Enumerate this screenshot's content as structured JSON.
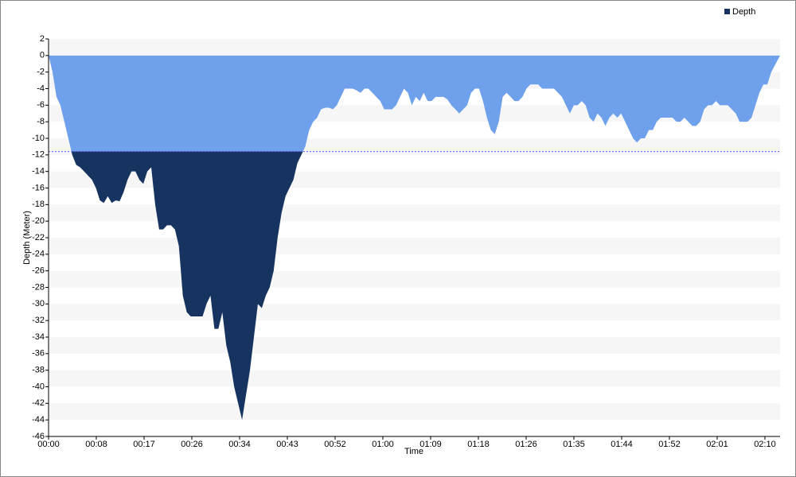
{
  "chart_data": {
    "type": "area",
    "x_label": "Time",
    "y_label": "Depth (Meter)",
    "legend": "top-right",
    "grid": false,
    "threshold": -11.6,
    "threshold_color": "#5a5af0",
    "xlim": [
      0,
      7965
    ],
    "ylim": [
      -46,
      2
    ],
    "xticks": [
      {
        "value": 0,
        "label": "00:00"
      },
      {
        "value": 520,
        "label": "00:08"
      },
      {
        "value": 1040,
        "label": "00:17"
      },
      {
        "value": 1560,
        "label": "00:26"
      },
      {
        "value": 2080,
        "label": "00:34"
      },
      {
        "value": 2600,
        "label": "00:43"
      },
      {
        "value": 3120,
        "label": "00:52"
      },
      {
        "value": 3640,
        "label": "01:00"
      },
      {
        "value": 4160,
        "label": "01:09"
      },
      {
        "value": 4680,
        "label": "01:18"
      },
      {
        "value": 5200,
        "label": "01:26"
      },
      {
        "value": 5720,
        "label": "01:35"
      },
      {
        "value": 6240,
        "label": "01:44"
      },
      {
        "value": 6760,
        "label": "01:52"
      },
      {
        "value": 7280,
        "label": "02:01"
      },
      {
        "value": 7800,
        "label": "02:10"
      }
    ],
    "yticks": [
      2,
      0,
      -2,
      -4,
      -6,
      -8,
      -10,
      -12,
      -14,
      -16,
      -18,
      -20,
      -22,
      -24,
      -26,
      -28,
      -30,
      -32,
      -34,
      -36,
      -38,
      -40,
      -42,
      -44,
      -46
    ],
    "x": [
      0,
      43,
      86,
      129,
      172,
      215,
      258,
      301,
      344,
      387,
      430,
      473,
      516,
      559,
      602,
      645,
      688,
      731,
      774,
      817,
      860,
      903,
      946,
      989,
      1032,
      1075,
      1118,
      1161,
      1204,
      1247,
      1290,
      1333,
      1376,
      1419,
      1462,
      1505,
      1548,
      1591,
      1634,
      1677,
      1720,
      1763,
      1806,
      1849,
      1892,
      1935,
      1978,
      2021,
      2064,
      2107,
      2150,
      2193,
      2236,
      2279,
      2322,
      2365,
      2408,
      2451,
      2494,
      2537,
      2580,
      2623,
      2666,
      2709,
      2752,
      2795,
      2838,
      2881,
      2924,
      2967,
      3010,
      3053,
      3096,
      3139,
      3182,
      3225,
      3268,
      3311,
      3354,
      3397,
      3440,
      3483,
      3526,
      3569,
      3612,
      3655,
      3698,
      3741,
      3784,
      3827,
      3870,
      3913,
      3956,
      3999,
      4042,
      4085,
      4128,
      4171,
      4214,
      4257,
      4300,
      4343,
      4386,
      4429,
      4472,
      4515,
      4558,
      4601,
      4644,
      4687,
      4730,
      4773,
      4816,
      4859,
      4902,
      4945,
      4988,
      5031,
      5074,
      5117,
      5160,
      5203,
      5246,
      5289,
      5332,
      5375,
      5418,
      5461,
      5504,
      5547,
      5590,
      5633,
      5676,
      5719,
      5762,
      5805,
      5848,
      5891,
      5934,
      5977,
      6020,
      6063,
      6106,
      6149,
      6192,
      6235,
      6278,
      6321,
      6364,
      6407,
      6450,
      6493,
      6536,
      6579,
      6622,
      6665,
      6708,
      6751,
      6794,
      6837,
      6880,
      6923,
      6966,
      7009,
      7052,
      7095,
      7138,
      7181,
      7224,
      7267,
      7310,
      7353,
      7396,
      7439,
      7482,
      7525,
      7568,
      7611,
      7654,
      7697,
      7740,
      7783,
      7826,
      7869,
      7965
    ],
    "series": [
      {
        "name": "Depth",
        "color": "#17335f",
        "above_color": "#6fa0ec",
        "values": [
          0,
          -2,
          -5,
          -6,
          -8,
          -10,
          -12,
          -13.2,
          -13.5,
          -14,
          -14.5,
          -15,
          -16,
          -17.5,
          -17.8,
          -17,
          -17.8,
          -17.5,
          -17.6,
          -16.5,
          -15,
          -14,
          -14,
          -15,
          -15.5,
          -14,
          -13.5,
          -18,
          -21,
          -21,
          -20.5,
          -20.5,
          -21,
          -23,
          -29,
          -31,
          -31.5,
          -31.5,
          -31.5,
          -31.5,
          -30,
          -29,
          -33,
          -33,
          -31,
          -35,
          -37,
          -40,
          -42,
          -44,
          -41,
          -38,
          -34,
          -30,
          -30.5,
          -29,
          -28,
          -26,
          -22,
          -19,
          -17,
          -16,
          -15,
          -13,
          -12,
          -11,
          -9,
          -8,
          -7.5,
          -6.5,
          -6.3,
          -6.3,
          -6.5,
          -6,
          -5,
          -4,
          -4,
          -4,
          -4.2,
          -4.5,
          -4,
          -4,
          -4.5,
          -5,
          -5.5,
          -6.5,
          -6.5,
          -6.5,
          -6,
          -5,
          -4,
          -4.5,
          -6,
          -5,
          -5.5,
          -4.5,
          -5.5,
          -5.5,
          -5,
          -5,
          -5,
          -5.3,
          -6,
          -6.5,
          -7,
          -6.5,
          -6,
          -4.5,
          -4,
          -4,
          -5.5,
          -7.5,
          -9,
          -9.5,
          -8,
          -5,
          -4.5,
          -5,
          -5.5,
          -5.5,
          -5,
          -4,
          -3.5,
          -3.5,
          -3.5,
          -4,
          -4,
          -4,
          -4,
          -4.5,
          -5,
          -6,
          -7,
          -6,
          -6,
          -5.5,
          -6,
          -7.5,
          -8,
          -7,
          -7.5,
          -8.5,
          -7.5,
          -7,
          -7.5,
          -7,
          -8,
          -9,
          -10,
          -10.5,
          -10,
          -10,
          -9,
          -9,
          -8,
          -7.5,
          -7.5,
          -7.5,
          -7.5,
          -8,
          -8,
          -7.5,
          -8,
          -8.5,
          -8.5,
          -8,
          -6.5,
          -6,
          -6,
          -5.5,
          -6,
          -6,
          -6,
          -6.5,
          -7,
          -8,
          -8,
          -8,
          -7.5,
          -6,
          -4.5,
          -3.5,
          -3.5,
          -2,
          0
        ]
      }
    ]
  }
}
